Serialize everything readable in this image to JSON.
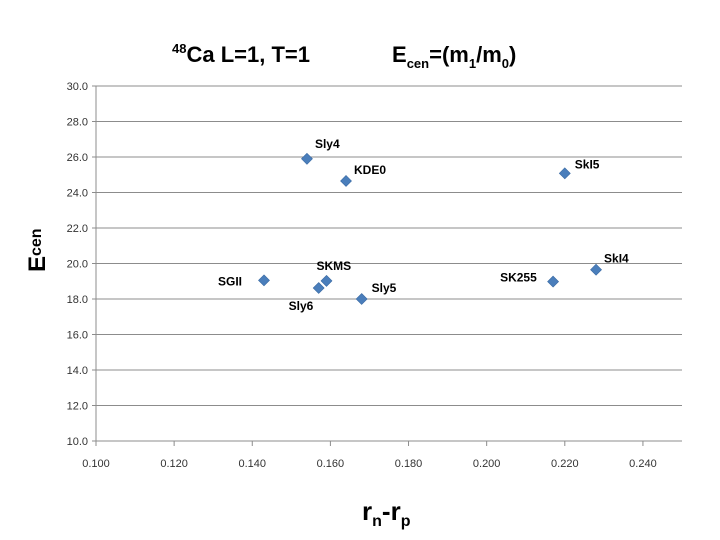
{
  "title": {
    "isotope_mass": "48",
    "isotope": "Ca L=1, T=1",
    "formula_prefix": "E",
    "formula_sub": "cen",
    "formula_eq": "=(m",
    "formula_m1_sub": "1",
    "formula_slash": "/m",
    "formula_m0_sub": "0",
    "formula_close": ")"
  },
  "chart_data": {
    "type": "scatter",
    "title": "48Ca L=1, T=1    Ecen=(m1/m0)",
    "xlabel": "rn-rp",
    "ylabel": "Ecen",
    "xlim": [
      0.1,
      0.25
    ],
    "ylim": [
      10.0,
      30.0
    ],
    "x_ticks": [
      "0.100",
      "0.120",
      "0.140",
      "0.160",
      "0.180",
      "0.200",
      "0.220",
      "0.240"
    ],
    "y_ticks": [
      "10.0",
      "12.0",
      "14.0",
      "16.0",
      "18.0",
      "20.0",
      "22.0",
      "24.0",
      "26.0",
      "28.0",
      "30.0"
    ],
    "grid": true,
    "marker_color": "#4a7ebb",
    "points": [
      {
        "label": "SGII",
        "x": 0.143,
        "y": 19.05
      },
      {
        "label": "Sly6",
        "x": 0.157,
        "y": 18.62
      },
      {
        "label": "SKMS",
        "x": 0.159,
        "y": 19.02
      },
      {
        "label": "Sly5",
        "x": 0.168,
        "y": 18.0
      },
      {
        "label": "Sly4",
        "x": 0.154,
        "y": 25.9
      },
      {
        "label": "KDE0",
        "x": 0.164,
        "y": 24.65
      },
      {
        "label": "SkI5",
        "x": 0.22,
        "y": 25.08
      },
      {
        "label": "SK255",
        "x": 0.217,
        "y": 18.98
      },
      {
        "label": "SkI4",
        "x": 0.228,
        "y": 19.65
      }
    ]
  },
  "axis_titles": {
    "x_main": "r",
    "x_sub1": "n",
    "x_mid": "-r",
    "x_sub2": "p",
    "y_main": "E",
    "y_sub": "cen"
  }
}
